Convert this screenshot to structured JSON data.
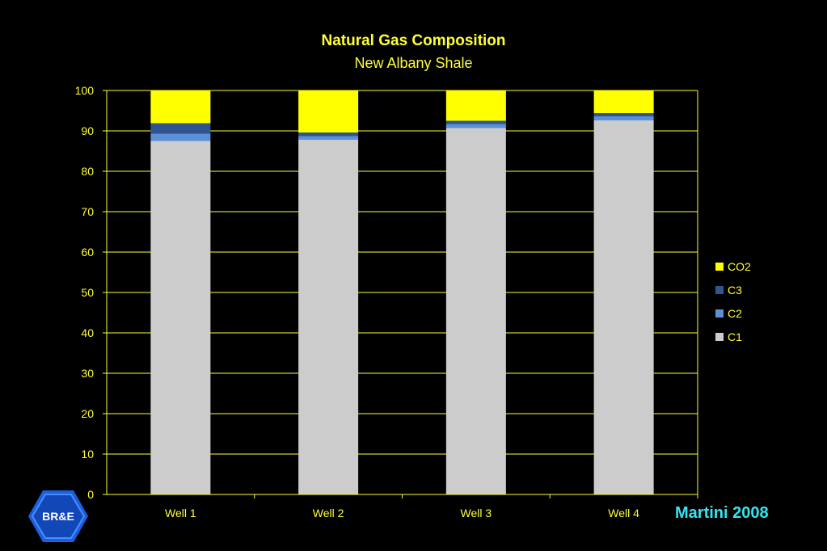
{
  "chart_data": {
    "type": "bar",
    "stacked": true,
    "title": "Natural Gas Composition",
    "subtitle": "New Albany Shale",
    "categories": [
      "Well 1",
      "Well 2",
      "Well 3",
      "Well 4"
    ],
    "series": [
      {
        "name": "C1",
        "color": "#cccccc",
        "values": [
          87.5,
          87.8,
          90.7,
          92.6
        ]
      },
      {
        "name": "C2",
        "color": "#5b8fd6",
        "values": [
          1.8,
          0.9,
          1.0,
          1.0
        ]
      },
      {
        "name": "C3",
        "color": "#2f5590",
        "values": [
          2.6,
          0.9,
          0.8,
          0.8
        ]
      },
      {
        "name": "CO2",
        "color": "#ffff00",
        "values": [
          8.1,
          10.4,
          7.5,
          5.6
        ]
      }
    ],
    "ylim": [
      0,
      100
    ],
    "yticks": [
      "0",
      "10",
      "20",
      "30",
      "40",
      "50",
      "60",
      "70",
      "80",
      "90",
      "100"
    ],
    "grid": true,
    "legend_position": "right",
    "legend_order": [
      "CO2",
      "C3",
      "C2",
      "C1"
    ]
  },
  "footer": {
    "credit": "Martini 2008",
    "logo_text": "BR&E"
  },
  "colors": {
    "background": "#000000",
    "text": "#ffff33",
    "grid": "#ffff33",
    "credit": "#33e6f0"
  }
}
